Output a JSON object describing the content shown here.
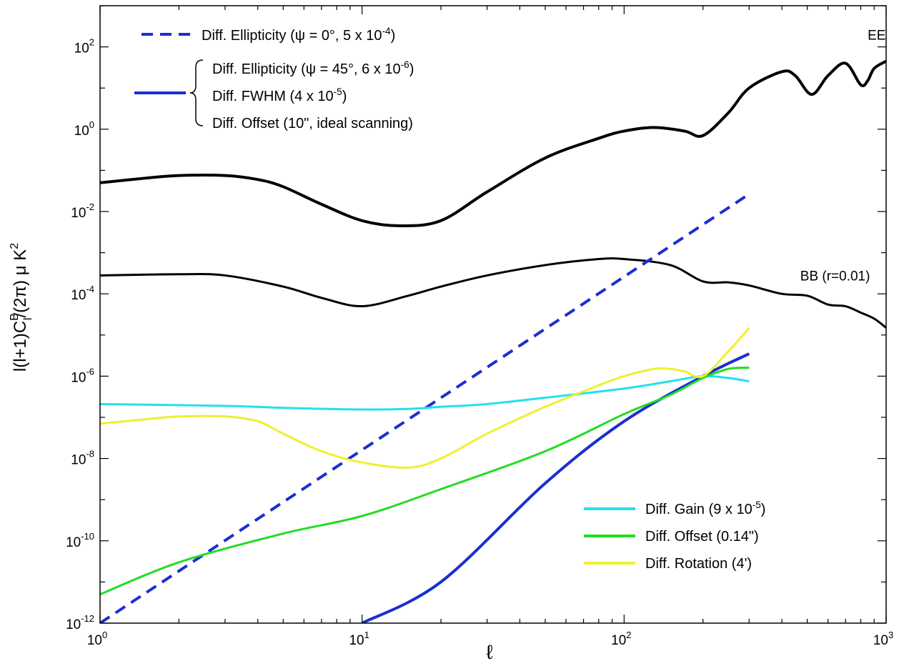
{
  "chart_data": {
    "type": "line",
    "xscale": "log",
    "yscale": "log",
    "xlim": [
      1,
      1000
    ],
    "ylim": [
      1e-12,
      1000
    ],
    "xlabel": "ℓ",
    "ylabel": {
      "base": "l(l+1)C",
      "sup": "B",
      "sub": "l",
      "rest": "/(2π) μ K",
      "sup2": "2"
    },
    "x_ticks": [
      {
        "value": 1,
        "base": "10",
        "exp": "0"
      },
      {
        "value": 10,
        "base": "10",
        "exp": "1"
      },
      {
        "value": 100,
        "base": "10",
        "exp": "2"
      },
      {
        "value": 1000,
        "base": "10",
        "exp": "3"
      }
    ],
    "y_ticks": [
      {
        "value": 1e-12,
        "base": "10",
        "exp": "-12"
      },
      {
        "value": 1e-10,
        "base": "10",
        "exp": "-10"
      },
      {
        "value": 1e-08,
        "base": "10",
        "exp": "-8"
      },
      {
        "value": 1e-06,
        "base": "10",
        "exp": "-6"
      },
      {
        "value": 0.0001,
        "base": "10",
        "exp": "-4"
      },
      {
        "value": 0.01,
        "base": "10",
        "exp": "-2"
      },
      {
        "value": 1,
        "base": "10",
        "exp": "0"
      },
      {
        "value": 100,
        "base": "10",
        "exp": "2"
      }
    ],
    "series": [
      {
        "name": "EE",
        "color": "#000000",
        "style": "solid",
        "width": 4,
        "x": [
          1,
          1.5,
          2,
          3,
          4,
          5,
          7,
          10,
          14,
          20,
          30,
          50,
          80,
          100,
          130,
          170,
          200,
          250,
          300,
          400,
          450,
          520,
          600,
          700,
          800,
          850,
          900,
          1000
        ],
        "y": [
          0.05,
          0.065,
          0.075,
          0.075,
          0.06,
          0.04,
          0.015,
          0.006,
          0.0045,
          0.006,
          0.03,
          0.2,
          0.6,
          0.9,
          1.1,
          0.9,
          0.7,
          2.5,
          10,
          25,
          20,
          7,
          20,
          40,
          12,
          15,
          30,
          45
        ]
      },
      {
        "name": "BB (r=0.01)",
        "color": "#000000",
        "style": "solid",
        "width": 3,
        "x": [
          1,
          2,
          3,
          5,
          7,
          10,
          15,
          20,
          30,
          50,
          80,
          100,
          150,
          200,
          250,
          300,
          400,
          500,
          600,
          700,
          800,
          900,
          1000
        ],
        "y": [
          0.00028,
          0.0003,
          0.00028,
          0.00015,
          8e-05,
          5e-05,
          9e-05,
          0.00015,
          0.00028,
          0.0005,
          0.0007,
          0.0007,
          0.0005,
          0.0002,
          0.00019,
          0.00016,
          0.0001,
          9e-05,
          5.5e-05,
          5e-05,
          3.5e-05,
          2.5e-05,
          1.5e-05
        ]
      },
      {
        "name": "Diff. Ellipticity (ψ = 0°, 5 x 10-4)",
        "color": "#1a2fd0",
        "style": "dashed",
        "width": 4,
        "x": [
          1,
          290
        ],
        "y": [
          1e-12,
          0.023
        ]
      },
      {
        "name": "Diff. Ellipticity (ψ = 45°, 6 x 10-6) / Diff. FWHM (4 x 10-5) / Diff. Offset (10\", ideal scanning)",
        "color": "#1a2fd0",
        "style": "solid",
        "width": 4,
        "x": [
          10,
          20,
          50,
          100,
          200,
          300
        ],
        "y": [
          1e-12,
          1e-11,
          2.5e-09,
          8e-08,
          1e-06,
          3.5e-06
        ]
      },
      {
        "name": "Diff. Gain (9 x 10-5)",
        "color": "#22e0f0",
        "style": "solid",
        "width": 3,
        "x": [
          1,
          3,
          5,
          10,
          15,
          20,
          30,
          50,
          100,
          150,
          200,
          250,
          300
        ],
        "y": [
          2.1e-07,
          1.9e-07,
          1.7e-07,
          1.55e-07,
          1.6e-07,
          1.8e-07,
          2.1e-07,
          3e-07,
          5e-07,
          7.5e-07,
          1e-06,
          9e-07,
          7.5e-07
        ]
      },
      {
        "name": "Diff. Offset (0.14\")",
        "color": "#22dd22",
        "style": "solid",
        "width": 3,
        "x": [
          1,
          2,
          5,
          10,
          20,
          50,
          100,
          150,
          200,
          250,
          300
        ],
        "y": [
          5e-12,
          3e-11,
          1.5e-10,
          4e-10,
          1.8e-09,
          1.5e-08,
          1.2e-07,
          3.5e-07,
          9e-07,
          1.5e-06,
          1.6e-06
        ]
      },
      {
        "name": "Diff. Rotation (4')",
        "color": "#f0f030",
        "style": "solid",
        "width": 3,
        "x": [
          1,
          1.5,
          2,
          3,
          4,
          5,
          7,
          10,
          15,
          20,
          30,
          50,
          80,
          100,
          130,
          150,
          170,
          200,
          250,
          300
        ],
        "y": [
          7e-08,
          9e-08,
          1.05e-07,
          1.05e-07,
          8e-08,
          4e-08,
          1.5e-08,
          8e-09,
          6e-09,
          1e-08,
          4e-08,
          1.8e-07,
          6e-07,
          1e-06,
          1.5e-06,
          1.5e-06,
          1.3e-06,
          1e-06,
          4e-06,
          1.5e-05
        ]
      }
    ],
    "curve_labels": [
      {
        "text": "EE",
        "x": 850,
        "y": 200
      },
      {
        "text": "BB (r=0.01)",
        "x": 470,
        "y": 0.00028
      }
    ],
    "legend_top": {
      "dashed": {
        "text": "Diff. Ellipticity (ψ = 0°, 5 x 10",
        "exp": "-4",
        "after": ")"
      },
      "solid_group": [
        {
          "text": "Diff. Ellipticity (ψ = 45°, 6 x 10",
          "exp": "-6",
          "after": ")"
        },
        {
          "text": "Diff. FWHM (4 x 10",
          "exp": "-5",
          "after": ")"
        },
        {
          "text": "Diff. Offset (10\", ideal scanning)",
          "exp": "",
          "after": ""
        }
      ]
    },
    "legend_bottom": [
      {
        "text": "Diff. Gain (9 x 10",
        "exp": "-5",
        "after": ")",
        "color": "#22e0f0"
      },
      {
        "text": "Diff. Offset (0.14\")",
        "exp": "",
        "after": "",
        "color": "#22dd22"
      },
      {
        "text": "Diff. Rotation (4')",
        "exp": "",
        "after": "",
        "color": "#f0f030"
      }
    ]
  }
}
